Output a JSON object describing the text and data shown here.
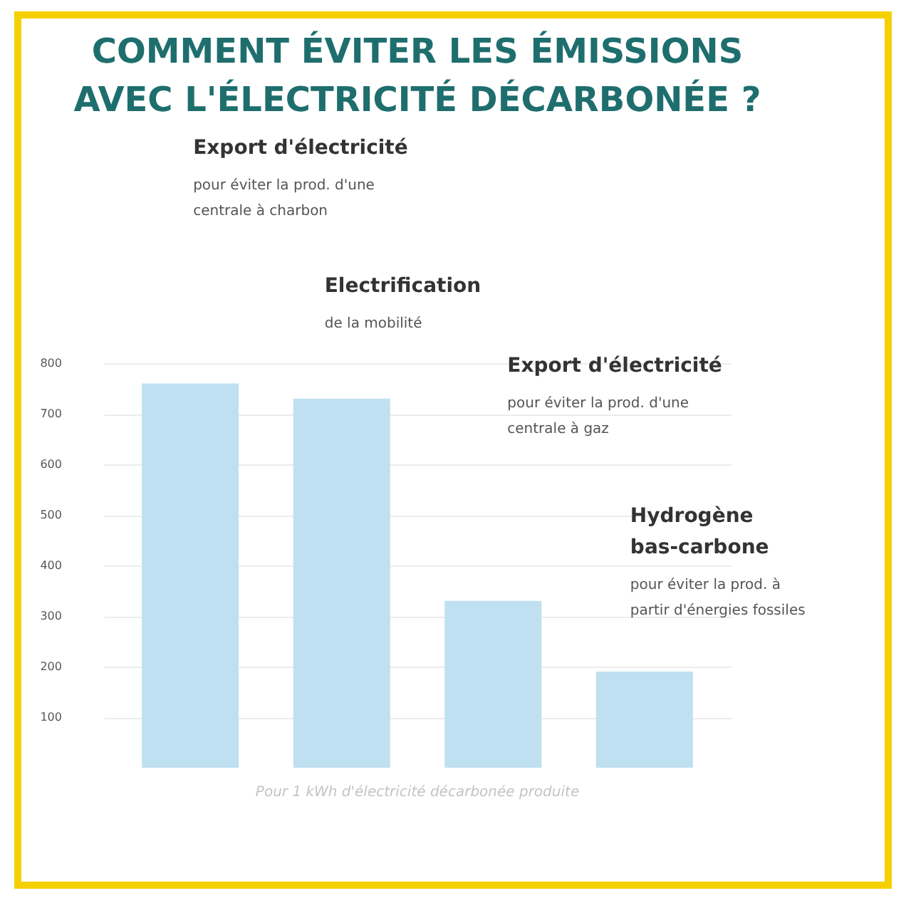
{
  "chart_data": {
    "type": "bar",
    "title": "COMMENT ÉVITER LES ÉMISSIONS\nAVEC L'ÉLECTRICITÉ DÉCARBONÉE ?",
    "categories": [
      null,
      null,
      null,
      null
    ],
    "values": [
      760,
      730,
      330,
      190
    ],
    "color": "#bfe0f0",
    "ylim": [
      0,
      800
    ],
    "yticks": [
      100,
      200,
      300,
      400,
      500,
      600,
      700,
      800
    ],
    "grid": "y",
    "tick_labels": "y",
    "annotations": [
      "Export d'électricité",
      "Electrification",
      "Export d'électricité",
      "Hydrogène\nbas-carbone",
      "pour éviter la prod. d'une\ncentrale à charbon",
      "de la mobilité",
      "pour éviter la prod. d'une\ncentrale à gaz",
      "pour éviter la prod. à\npartir d'énergies fossiles",
      "Pour 1 kWh d'électricité décarbonée produite"
    ]
  }
}
